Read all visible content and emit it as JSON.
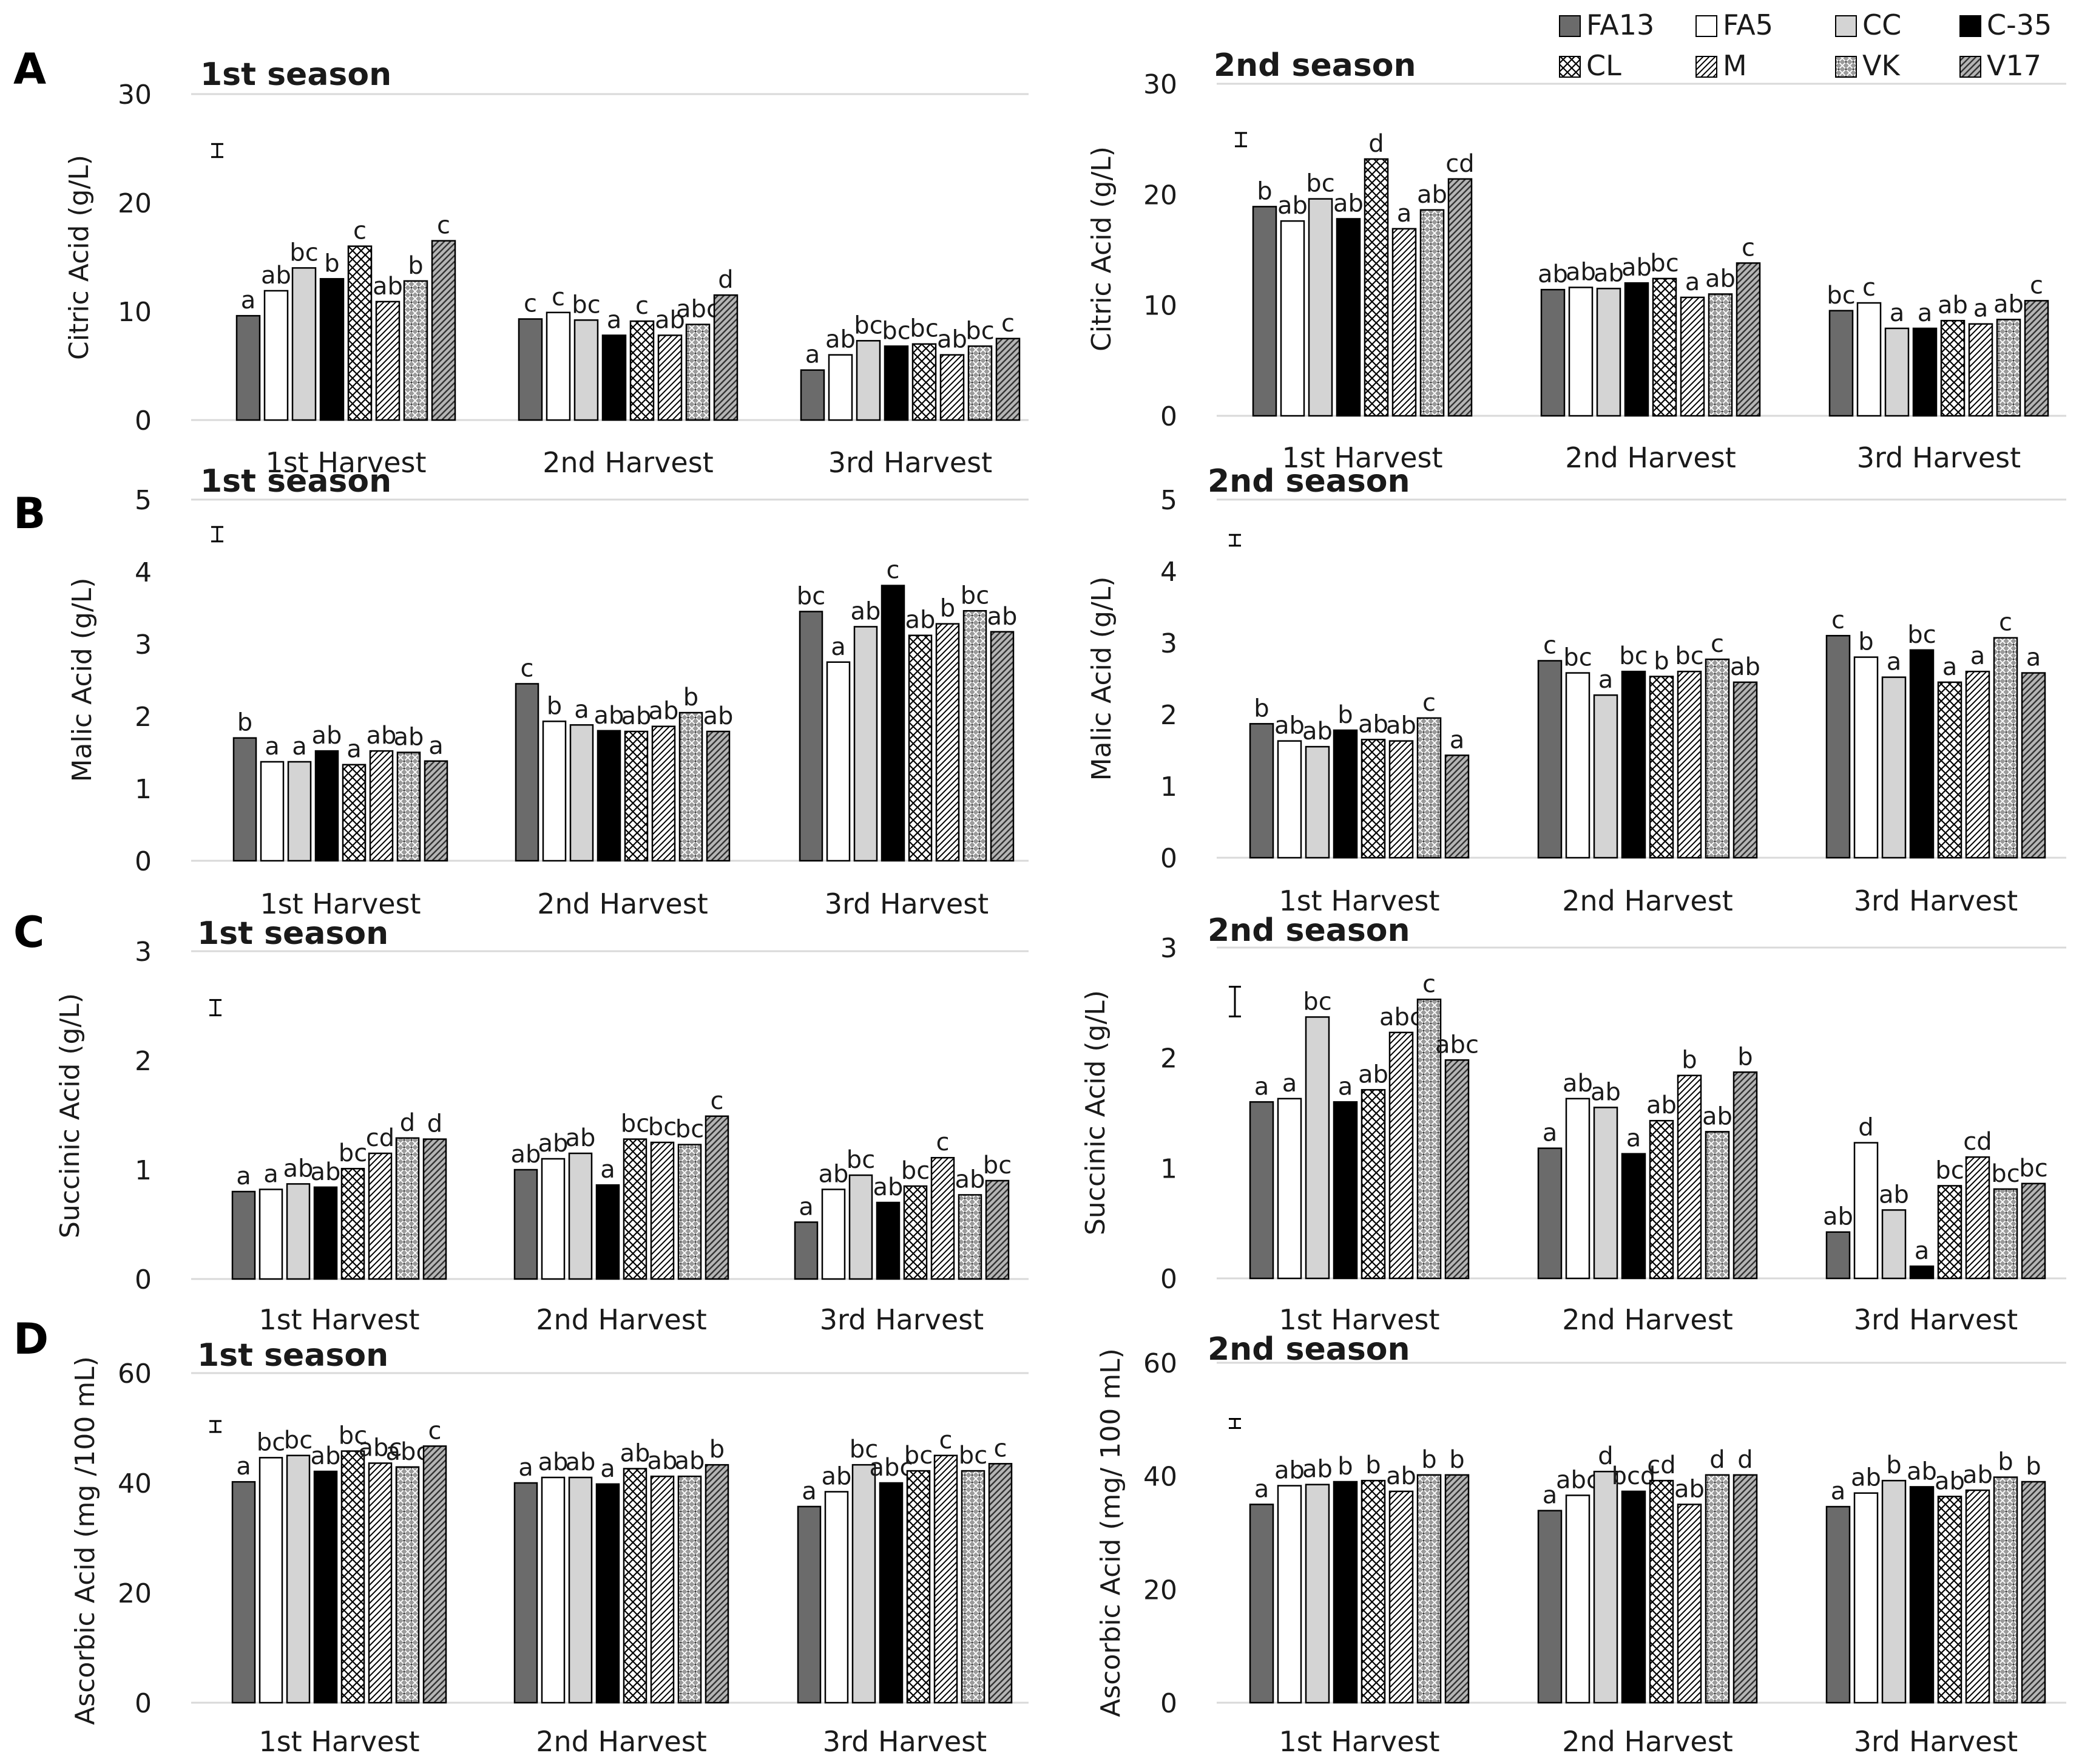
{
  "panel_letters": [
    "A",
    "B",
    "C",
    "D"
  ],
  "legend": [
    {
      "key": "FA13",
      "fill": "#6b6b6b",
      "pattern": "solid"
    },
    {
      "key": "FA5",
      "fill": "#ffffff",
      "pattern": "solid"
    },
    {
      "key": "CC",
      "fill": "#d4d4d4",
      "pattern": "solid"
    },
    {
      "key": "C-35",
      "fill": "#000000",
      "pattern": "solid"
    },
    {
      "key": "CL",
      "fill": "#ffffff",
      "pattern": "cross"
    },
    {
      "key": "M",
      "fill": "#ffffff",
      "pattern": "diagonal"
    },
    {
      "key": "VK",
      "fill": "#9a9a9a",
      "pattern": "crossDark"
    },
    {
      "key": "V17",
      "fill": "#b0b0b0",
      "pattern": "diagonalDark"
    }
  ],
  "colors": {
    "axis": "#d9d9d9",
    "bar_stroke": "#000000",
    "text": "#1a1a1a"
  },
  "chart_data": [
    {
      "type": "bar",
      "panel": "A",
      "title": "1st season",
      "ylabel": "Citric Acid (g/L)",
      "ylim": [
        0,
        30
      ],
      "yticks": [
        0,
        10,
        20,
        30
      ],
      "grid": false,
      "categories": [
        "1st Harvest",
        "2nd Harvest",
        "3rd Harvest"
      ],
      "error_bar": 1.2,
      "series": [
        {
          "name": "FA13",
          "values": [
            9.6,
            9.3,
            4.6
          ]
        },
        {
          "name": "FA5",
          "values": [
            11.9,
            9.9,
            6.0
          ]
        },
        {
          "name": "CC",
          "values": [
            14.0,
            9.2,
            7.3
          ]
        },
        {
          "name": "C-35",
          "values": [
            13.0,
            7.8,
            6.8
          ]
        },
        {
          "name": "CL",
          "values": [
            16.0,
            9.1,
            7.0
          ]
        },
        {
          "name": "M",
          "values": [
            10.9,
            7.8,
            6.0
          ]
        },
        {
          "name": "VK",
          "values": [
            12.8,
            8.8,
            6.8
          ]
        },
        {
          "name": "V17",
          "values": [
            16.5,
            11.5,
            7.5
          ]
        }
      ],
      "letters": [
        [
          "a",
          "ab",
          "bc",
          "b",
          "c",
          "ab",
          "b",
          "c"
        ],
        [
          "c",
          "c",
          "bc",
          "a",
          "c",
          "ab",
          "abc",
          "d"
        ],
        [
          "a",
          "ab",
          "bc",
          "bc",
          "bc",
          "ab",
          "bc",
          "c"
        ]
      ]
    },
    {
      "type": "bar",
      "panel": "A",
      "title": "2nd season",
      "ylabel": "Citric Acid (g/L)",
      "ylim": [
        0,
        30
      ],
      "yticks": [
        0,
        10,
        20,
        30
      ],
      "grid": false,
      "categories": [
        "1st Harvest",
        "2nd Harvest",
        "3rd Harvest"
      ],
      "error_bar": 1.2,
      "series": [
        {
          "name": "FA13",
          "values": [
            18.9,
            11.4,
            9.5
          ]
        },
        {
          "name": "FA5",
          "values": [
            17.6,
            11.6,
            10.2
          ]
        },
        {
          "name": "CC",
          "values": [
            19.6,
            11.5,
            7.9
          ]
        },
        {
          "name": "C-35",
          "values": [
            17.8,
            12.0,
            7.9
          ]
        },
        {
          "name": "CL",
          "values": [
            23.2,
            12.4,
            8.6
          ]
        },
        {
          "name": "M",
          "values": [
            16.9,
            10.7,
            8.3
          ]
        },
        {
          "name": "VK",
          "values": [
            18.6,
            11.0,
            8.7
          ]
        },
        {
          "name": "V17",
          "values": [
            21.4,
            13.8,
            10.4
          ]
        }
      ],
      "letters": [
        [
          "b",
          "ab",
          "bc",
          "ab",
          "d",
          "a",
          "ab",
          "cd"
        ],
        [
          "ab",
          "ab",
          "ab",
          "ab",
          "bc",
          "a",
          "ab",
          "c"
        ],
        [
          "bc",
          "c",
          "a",
          "a",
          "ab",
          "a",
          "ab",
          "c"
        ]
      ]
    },
    {
      "type": "bar",
      "panel": "B",
      "title": "1st season",
      "ylabel": "Malic Acid (g/L)",
      "ylim": [
        0,
        5
      ],
      "yticks": [
        0,
        1,
        2,
        3,
        4,
        5
      ],
      "grid": false,
      "categories": [
        "1st Harvest",
        "2nd Harvest",
        "3rd Harvest"
      ],
      "error_bar": 0.2,
      "series": [
        {
          "name": "FA13",
          "values": [
            1.7,
            2.45,
            3.45
          ]
        },
        {
          "name": "FA5",
          "values": [
            1.37,
            1.93,
            2.75
          ]
        },
        {
          "name": "CC",
          "values": [
            1.37,
            1.88,
            3.24
          ]
        },
        {
          "name": "C-35",
          "values": [
            1.52,
            1.8,
            3.81
          ]
        },
        {
          "name": "CL",
          "values": [
            1.33,
            1.79,
            3.12
          ]
        },
        {
          "name": "M",
          "values": [
            1.52,
            1.86,
            3.28
          ]
        },
        {
          "name": "VK",
          "values": [
            1.5,
            2.05,
            3.46
          ]
        },
        {
          "name": "V17",
          "values": [
            1.38,
            1.79,
            3.17
          ]
        }
      ],
      "letters": [
        [
          "b",
          "a",
          "a",
          "ab",
          "a",
          "ab",
          "ab",
          "a"
        ],
        [
          "c",
          "b",
          "a",
          "ab",
          "ab",
          "ab",
          "b",
          "ab"
        ],
        [
          "bc",
          "a",
          "ab",
          "c",
          "ab",
          "b",
          "bc",
          "ab"
        ]
      ]
    },
    {
      "type": "bar",
      "panel": "B",
      "title": "2nd season",
      "ylabel": "Malic Acid (g/L)",
      "ylim": [
        0,
        5
      ],
      "yticks": [
        0,
        1,
        2,
        3,
        4,
        5
      ],
      "grid": false,
      "categories": [
        "1st Harvest",
        "2nd Harvest",
        "3rd Harvest"
      ],
      "error_bar": 0.15,
      "series": [
        {
          "name": "FA13",
          "values": [
            1.87,
            2.75,
            3.1
          ]
        },
        {
          "name": "FA5",
          "values": [
            1.63,
            2.58,
            2.8
          ]
        },
        {
          "name": "CC",
          "values": [
            1.55,
            2.27,
            2.52
          ]
        },
        {
          "name": "C-35",
          "values": [
            1.78,
            2.6,
            2.9
          ]
        },
        {
          "name": "CL",
          "values": [
            1.65,
            2.53,
            2.45
          ]
        },
        {
          "name": "M",
          "values": [
            1.63,
            2.6,
            2.6
          ]
        },
        {
          "name": "VK",
          "values": [
            1.95,
            2.77,
            3.07
          ]
        },
        {
          "name": "V17",
          "values": [
            1.43,
            2.45,
            2.58
          ]
        }
      ],
      "letters": [
        [
          "b",
          "ab",
          "ab",
          "b",
          "ab",
          "ab",
          "c",
          "a"
        ],
        [
          "c",
          "bc",
          "a",
          "bc",
          "b",
          "bc",
          "c",
          "ab"
        ],
        [
          "c",
          "b",
          "a",
          "bc",
          "a",
          "a",
          "c",
          "a"
        ]
      ]
    },
    {
      "type": "bar",
      "panel": "C",
      "title": "1st season",
      "ylabel": "Succinic Acid (g/L)",
      "ylim": [
        0,
        3
      ],
      "yticks": [
        0,
        1,
        2,
        3
      ],
      "grid": false,
      "categories": [
        "1st Harvest",
        "2nd Harvest",
        "3rd Harvest"
      ],
      "error_bar": 0.14,
      "series": [
        {
          "name": "FA13",
          "values": [
            0.8,
            1.0,
            0.52
          ]
        },
        {
          "name": "FA5",
          "values": [
            0.82,
            1.1,
            0.82
          ]
        },
        {
          "name": "CC",
          "values": [
            0.87,
            1.15,
            0.95
          ]
        },
        {
          "name": "C-35",
          "values": [
            0.84,
            0.86,
            0.7
          ]
        },
        {
          "name": "CL",
          "values": [
            1.01,
            1.28,
            0.85
          ]
        },
        {
          "name": "M",
          "values": [
            1.15,
            1.25,
            1.11
          ]
        },
        {
          "name": "VK",
          "values": [
            1.29,
            1.23,
            0.77
          ]
        },
        {
          "name": "V17",
          "values": [
            1.28,
            1.49,
            0.9
          ]
        }
      ],
      "letters": [
        [
          "a",
          "a",
          "ab",
          "ab",
          "bc",
          "cd",
          "d",
          "d"
        ],
        [
          "ab",
          "ab",
          "ab",
          "a",
          "bc",
          "bc",
          "bc",
          "c"
        ],
        [
          "a",
          "ab",
          "bc",
          "ab",
          "bc",
          "c",
          "ab",
          "bc"
        ]
      ]
    },
    {
      "type": "bar",
      "panel": "C",
      "title": "2nd season",
      "ylabel": "Succinic Acid (g/L)",
      "ylim": [
        0,
        3
      ],
      "yticks": [
        0,
        1,
        2,
        3
      ],
      "grid": false,
      "categories": [
        "1st Harvest",
        "2nd Harvest",
        "3rd Harvest"
      ],
      "error_bar": 0.27,
      "series": [
        {
          "name": "FA13",
          "values": [
            1.6,
            1.18,
            0.42
          ]
        },
        {
          "name": "FA5",
          "values": [
            1.63,
            1.63,
            1.23
          ]
        },
        {
          "name": "CC",
          "values": [
            2.37,
            1.55,
            0.62
          ]
        },
        {
          "name": "C-35",
          "values": [
            1.6,
            1.13,
            0.11
          ]
        },
        {
          "name": "CL",
          "values": [
            1.71,
            1.43,
            0.84
          ]
        },
        {
          "name": "M",
          "values": [
            2.23,
            1.84,
            1.1
          ]
        },
        {
          "name": "VK",
          "values": [
            2.53,
            1.33,
            0.81
          ]
        },
        {
          "name": "V17",
          "values": [
            1.98,
            1.87,
            0.86
          ]
        }
      ],
      "letters": [
        [
          "a",
          "a",
          "bc",
          "a",
          "ab",
          "abc",
          "c",
          "abc"
        ],
        [
          "a",
          "ab",
          "ab",
          "a",
          "ab",
          "b",
          "ab",
          "b"
        ],
        [
          "ab",
          "d",
          "ab",
          "a",
          "bc",
          "cd",
          "bc",
          "bc"
        ]
      ]
    },
    {
      "type": "bar",
      "panel": "D",
      "title": "1st season",
      "ylabel": "Ascorbic Acid (mg /100 mL)",
      "ylim": [
        0,
        60
      ],
      "yticks": [
        0,
        20,
        40,
        60
      ],
      "grid": false,
      "categories": [
        "1st Harvest",
        "2nd Harvest",
        "3rd Harvest"
      ],
      "error_bar": 2.0,
      "series": [
        {
          "name": "FA13",
          "values": [
            40.2,
            40.0,
            35.7
          ]
        },
        {
          "name": "FA5",
          "values": [
            44.6,
            41.0,
            38.4
          ]
        },
        {
          "name": "CC",
          "values": [
            45.0,
            41.0,
            43.3
          ]
        },
        {
          "name": "C-35",
          "values": [
            42.1,
            39.8,
            40.0
          ]
        },
        {
          "name": "CL",
          "values": [
            45.8,
            42.6,
            42.2
          ]
        },
        {
          "name": "M",
          "values": [
            43.6,
            41.2,
            45.0
          ]
        },
        {
          "name": "VK",
          "values": [
            42.9,
            41.2,
            42.2
          ]
        },
        {
          "name": "V17",
          "values": [
            46.7,
            43.3,
            43.5
          ]
        }
      ],
      "letters": [
        [
          "a",
          "bc",
          "bc",
          "ab",
          "bc",
          "abc",
          "abc",
          "c"
        ],
        [
          "a",
          "ab",
          "ab",
          "a",
          "ab",
          "ab",
          "ab",
          "b"
        ],
        [
          "a",
          "ab",
          "bc",
          "abc",
          "bc",
          "c",
          "bc",
          "c"
        ]
      ]
    },
    {
      "type": "bar",
      "panel": "D",
      "title": "2nd season",
      "ylabel": "Ascorbic Acid (mg/ 100 mL)",
      "ylim": [
        0,
        60
      ],
      "yticks": [
        0,
        20,
        40,
        60
      ],
      "grid": false,
      "categories": [
        "1st Harvest",
        "2nd Harvest",
        "3rd Harvest"
      ],
      "error_bar": 1.6,
      "series": [
        {
          "name": "FA13",
          "values": [
            35.0,
            33.9,
            34.6
          ]
        },
        {
          "name": "FA5",
          "values": [
            38.3,
            36.6,
            37.0
          ]
        },
        {
          "name": "CC",
          "values": [
            38.5,
            40.8,
            39.2
          ]
        },
        {
          "name": "C-35",
          "values": [
            39.0,
            37.3,
            38.1
          ]
        },
        {
          "name": "CL",
          "values": [
            39.2,
            39.2,
            36.4
          ]
        },
        {
          "name": "M",
          "values": [
            37.3,
            35.0,
            37.5
          ]
        },
        {
          "name": "VK",
          "values": [
            40.2,
            40.2,
            39.8
          ]
        },
        {
          "name": "V17",
          "values": [
            40.2,
            40.2,
            39.0
          ]
        }
      ],
      "letters": [
        [
          "a",
          "ab",
          "ab",
          "b",
          "b",
          "ab",
          "b",
          "b"
        ],
        [
          "a",
          "abc",
          "d",
          "bcd",
          "cd",
          "ab",
          "d",
          "d"
        ],
        [
          "a",
          "ab",
          "b",
          "ab",
          "ab",
          "ab",
          "b",
          "b"
        ]
      ]
    }
  ]
}
